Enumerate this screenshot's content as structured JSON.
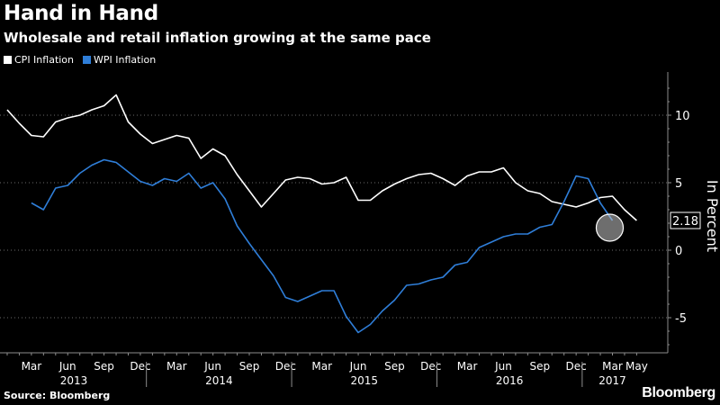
{
  "header": {
    "title": "Hand in Hand",
    "subtitle": "Wholesale and retail inflation growing at the same pace"
  },
  "footer": {
    "source": "Source: Bloomberg",
    "brand": "Bloomberg"
  },
  "colors": {
    "background": "#000000",
    "cpi": "#ffffff",
    "wpi": "#2f7ed8",
    "axis": "#8c8c8c"
  },
  "chart_data": {
    "type": "line",
    "title": "Hand in Hand",
    "subtitle": "Wholesale and retail inflation growing at the same pace",
    "ylabel": "In Percent",
    "ylim": [
      -8,
      13
    ],
    "yticks": [
      10,
      5,
      0,
      -5
    ],
    "ytick_labels": [
      "10",
      "5",
      "0",
      "-5"
    ],
    "x_start": "2013-01",
    "month_ticks": [
      {
        "label": "Mar",
        "i": 2
      },
      {
        "label": "Jun",
        "i": 5
      },
      {
        "label": "Sep",
        "i": 8
      },
      {
        "label": "Dec",
        "i": 11
      },
      {
        "label": "Mar",
        "i": 14
      },
      {
        "label": "Jun",
        "i": 17
      },
      {
        "label": "Sep",
        "i": 20
      },
      {
        "label": "Dec",
        "i": 23
      },
      {
        "label": "Mar",
        "i": 26
      },
      {
        "label": "Jun",
        "i": 29
      },
      {
        "label": "Sep",
        "i": 32
      },
      {
        "label": "Dec",
        "i": 35
      },
      {
        "label": "Mar",
        "i": 38
      },
      {
        "label": "Jun",
        "i": 41
      },
      {
        "label": "Sep",
        "i": 44
      },
      {
        "label": "Dec",
        "i": 47
      },
      {
        "label": "Mar",
        "i": 50
      },
      {
        "label": "May",
        "i": 52
      }
    ],
    "years": [
      {
        "label": "2013",
        "start": 0,
        "end": 11
      },
      {
        "label": "2014",
        "start": 12,
        "end": 23
      },
      {
        "label": "2015",
        "start": 24,
        "end": 35
      },
      {
        "label": "2016",
        "start": 36,
        "end": 47
      },
      {
        "label": "2017",
        "start": 48,
        "end": 52
      }
    ],
    "series": [
      {
        "name": "CPI Inflation",
        "color": "#ffffff",
        "start_index": 0,
        "values": [
          10.4,
          9.4,
          8.5,
          8.4,
          9.5,
          9.8,
          10.0,
          10.4,
          10.7,
          11.5,
          9.5,
          8.6,
          7.9,
          8.2,
          8.5,
          8.3,
          6.8,
          7.5,
          7.0,
          5.6,
          4.4,
          3.2,
          4.2,
          5.2,
          5.4,
          5.3,
          4.9,
          5.0,
          5.4,
          3.7,
          3.7,
          4.4,
          4.9,
          5.3,
          5.6,
          5.7,
          5.3,
          4.8,
          5.5,
          5.8,
          5.8,
          6.1,
          5.0,
          4.4,
          4.2,
          3.6,
          3.4,
          3.2,
          3.5,
          3.9,
          4.0,
          3.0,
          2.2
        ]
      },
      {
        "name": "WPI Inflation",
        "color": "#2f7ed8",
        "start_index": 2,
        "values": [
          3.5,
          3.0,
          4.6,
          4.8,
          5.7,
          6.3,
          6.7,
          6.5,
          5.8,
          5.1,
          4.8,
          5.3,
          5.1,
          5.7,
          4.6,
          5.0,
          3.8,
          1.8,
          0.5,
          -0.7,
          -1.9,
          -3.5,
          -3.8,
          -3.4,
          -3.0,
          -3.0,
          -4.9,
          -6.1,
          -5.5,
          -4.5,
          -3.7,
          -2.6,
          -2.5,
          -2.2,
          -2.0,
          -1.1,
          -0.9,
          0.2,
          0.6,
          1.0,
          1.2,
          1.2,
          1.7,
          1.9,
          3.6,
          5.5,
          5.3,
          3.5,
          2.2
        ]
      }
    ],
    "last_value_label": "2.18",
    "legend": [
      "CPI Inflation",
      "WPI Inflation"
    ],
    "legend_position": "top-left"
  }
}
